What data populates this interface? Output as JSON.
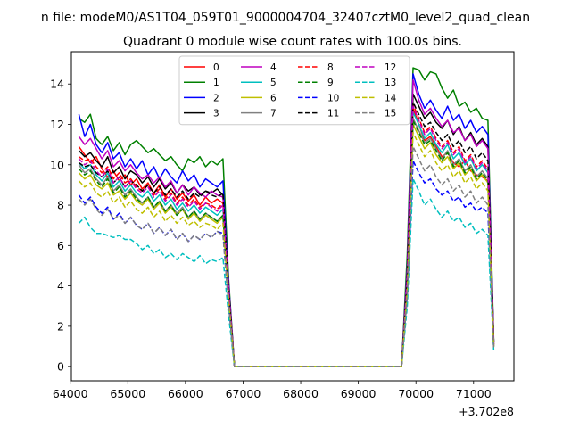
{
  "chart_data": {
    "type": "line",
    "suptitle": "n file: modeM0/AS1T04_059T01_9000004704_32407cztM0_level2_quad_clean",
    "title": "Quadrant 0 module wise count rates with 100.0s bins.",
    "xlabel": "",
    "ylabel": "",
    "x_offset_label": "+3.702e8",
    "xlim": [
      64020,
      71700
    ],
    "ylim": [
      -0.7,
      15.6
    ],
    "x_ticks": [
      64000,
      65000,
      66000,
      67000,
      68000,
      69000,
      70000,
      71000
    ],
    "x_tick_labels": [
      "64000",
      "65000",
      "66000",
      "67000",
      "68000",
      "69000",
      "70000",
      "71000"
    ],
    "y_ticks": [
      0,
      2,
      4,
      6,
      8,
      10,
      12,
      14
    ],
    "y_tick_labels": [
      "0",
      "2",
      "4",
      "6",
      "8",
      "10",
      "12",
      "14"
    ],
    "grid": false,
    "legend_position": "top-center",
    "legend_columns": 4,
    "x": [
      64150,
      64250,
      64350,
      64450,
      64550,
      64650,
      64750,
      64850,
      64950,
      65050,
      65150,
      65250,
      65350,
      65450,
      65550,
      65650,
      65750,
      65850,
      65950,
      66050,
      66150,
      66250,
      66350,
      66450,
      66550,
      66650,
      66750,
      66850,
      66950,
      69750,
      69850,
      69950,
      70050,
      70150,
      70250,
      70350,
      70450,
      70550,
      70650,
      70750,
      70850,
      70950,
      71050,
      71150,
      71250,
      71350
    ],
    "series": [
      {
        "name": "0",
        "color": "#ff0000",
        "dash": false,
        "values": [
          10.9,
          10.5,
          10.1,
          10.4,
          9.8,
          9.4,
          9.7,
          9.2,
          9.5,
          9.0,
          9.3,
          8.8,
          9.1,
          8.6,
          9.0,
          8.4,
          8.8,
          8.3,
          8.6,
          8.2,
          8.5,
          8.0,
          8.4,
          8.1,
          8.3,
          8.1,
          3.8,
          0.0,
          0.0,
          0.0,
          4.3,
          12.8,
          12.0,
          11.2,
          11.4,
          10.9,
          10.4,
          10.6,
          10.1,
          9.9,
          10.2,
          9.7,
          9.5,
          9.4,
          9.2,
          1.1
        ]
      },
      {
        "name": "1",
        "color": "#008000",
        "dash": false,
        "values": [
          12.3,
          12.1,
          12.5,
          11.3,
          11.0,
          11.4,
          10.7,
          11.1,
          10.5,
          11.0,
          11.2,
          10.9,
          10.6,
          10.8,
          10.5,
          10.2,
          10.4,
          10.0,
          9.7,
          10.3,
          10.1,
          10.4,
          9.9,
          10.2,
          10.0,
          10.3,
          4.3,
          0.0,
          0.0,
          0.0,
          5.6,
          14.8,
          14.7,
          14.2,
          14.6,
          14.5,
          13.8,
          13.3,
          13.7,
          12.9,
          13.1,
          12.6,
          12.8,
          12.3,
          12.2,
          1.3
        ]
      },
      {
        "name": "2",
        "color": "#0000ff",
        "dash": false,
        "values": [
          12.5,
          11.4,
          12.0,
          11.0,
          10.6,
          11.1,
          10.3,
          10.6,
          9.9,
          10.3,
          9.8,
          10.2,
          9.5,
          9.9,
          9.3,
          9.8,
          9.4,
          9.1,
          9.7,
          9.2,
          9.5,
          8.9,
          9.3,
          9.1,
          8.9,
          9.2,
          4.1,
          0.0,
          0.0,
          0.0,
          5.0,
          14.5,
          13.5,
          12.8,
          13.2,
          12.7,
          12.3,
          12.9,
          12.2,
          12.5,
          11.8,
          12.2,
          11.6,
          11.9,
          11.5,
          1.2
        ]
      },
      {
        "name": "3",
        "color": "#000000",
        "dash": false,
        "values": [
          10.7,
          10.4,
          10.6,
          10.2,
          9.9,
          10.4,
          9.6,
          9.9,
          9.3,
          9.7,
          9.5,
          9.1,
          9.4,
          8.9,
          9.3,
          8.8,
          9.1,
          8.6,
          9.0,
          8.7,
          8.9,
          8.5,
          8.7,
          8.6,
          8.8,
          8.5,
          3.9,
          0.0,
          0.0,
          0.0,
          4.7,
          13.5,
          12.9,
          12.3,
          12.6,
          12.1,
          11.8,
          12.2,
          11.5,
          11.9,
          11.2,
          11.6,
          11.0,
          11.3,
          10.9,
          1.2
        ]
      },
      {
        "name": "4",
        "color": "#bf00bf",
        "dash": false,
        "values": [
          11.4,
          11.0,
          11.3,
          10.8,
          10.3,
          10.7,
          9.9,
          10.2,
          9.7,
          10.0,
          9.6,
          9.3,
          9.5,
          9.1,
          9.4,
          8.9,
          9.2,
          8.6,
          9.0,
          8.5,
          8.9,
          8.6,
          8.4,
          8.7,
          8.5,
          8.4,
          4.0,
          0.0,
          0.0,
          0.0,
          4.8,
          14.2,
          13.2,
          12.5,
          12.8,
          12.3,
          11.9,
          12.2,
          11.6,
          11.8,
          11.2,
          11.5,
          10.9,
          11.2,
          10.8,
          1.2
        ]
      },
      {
        "name": "5",
        "color": "#00bfbf",
        "dash": false,
        "values": [
          10.1,
          9.8,
          10.0,
          9.5,
          9.2,
          9.6,
          8.9,
          9.2,
          8.7,
          9.0,
          8.6,
          8.4,
          8.7,
          8.2,
          8.5,
          8.0,
          8.3,
          7.8,
          8.1,
          7.7,
          8.0,
          7.6,
          7.9,
          7.7,
          7.5,
          7.8,
          3.6,
          0.0,
          0.0,
          0.0,
          4.2,
          12.6,
          12.0,
          11.3,
          11.6,
          11.0,
          10.6,
          11.0,
          10.3,
          10.6,
          10.0,
          10.3,
          9.7,
          10.0,
          9.6,
          1.1
        ]
      },
      {
        "name": "6",
        "color": "#bfbf00",
        "dash": false,
        "values": [
          9.6,
          9.3,
          9.5,
          9.0,
          8.8,
          9.1,
          8.5,
          8.7,
          8.3,
          8.6,
          8.2,
          8.0,
          8.3,
          7.8,
          8.1,
          7.6,
          7.9,
          7.5,
          7.8,
          7.3,
          7.6,
          7.2,
          7.5,
          7.3,
          7.1,
          7.4,
          3.4,
          0.0,
          0.0,
          0.0,
          4.0,
          12.0,
          11.4,
          10.8,
          11.1,
          10.5,
          10.1,
          10.4,
          9.8,
          10.1,
          9.5,
          9.8,
          9.2,
          9.5,
          9.1,
          1.0
        ]
      },
      {
        "name": "7",
        "color": "#808080",
        "dash": false,
        "values": [
          10.0,
          9.6,
          9.8,
          9.3,
          9.0,
          9.4,
          8.7,
          9.0,
          8.5,
          8.8,
          8.4,
          8.1,
          8.4,
          7.9,
          8.2,
          7.7,
          8.0,
          7.6,
          7.9,
          7.4,
          7.7,
          7.3,
          7.6,
          7.4,
          7.2,
          7.5,
          3.5,
          0.0,
          0.0,
          0.0,
          4.1,
          12.3,
          11.7,
          11.1,
          11.3,
          10.8,
          10.3,
          10.7,
          10.0,
          10.3,
          9.7,
          10.0,
          9.4,
          9.7,
          9.3,
          1.0
        ]
      },
      {
        "name": "8",
        "color": "#ff0000",
        "dash": true,
        "values": [
          10.4,
          10.2,
          10.3,
          9.9,
          9.6,
          9.9,
          9.3,
          9.6,
          9.1,
          9.3,
          8.9,
          8.7,
          9.0,
          8.5,
          8.8,
          8.3,
          8.6,
          8.1,
          8.4,
          8.0,
          8.3,
          7.9,
          8.1,
          8.0,
          7.8,
          8.1,
          3.7,
          0.0,
          0.0,
          0.0,
          4.4,
          13.0,
          12.3,
          11.6,
          11.9,
          11.3,
          10.9,
          11.2,
          10.6,
          10.9,
          10.2,
          10.5,
          9.9,
          10.2,
          9.8,
          1.1
        ]
      },
      {
        "name": "9",
        "color": "#008000",
        "dash": true,
        "values": [
          9.8,
          9.5,
          9.7,
          9.2,
          8.9,
          9.3,
          8.6,
          8.9,
          8.4,
          8.7,
          8.3,
          8.1,
          8.4,
          7.9,
          8.2,
          7.7,
          8.0,
          7.5,
          7.8,
          7.4,
          7.7,
          7.3,
          7.6,
          7.4,
          7.2,
          7.5,
          3.5,
          0.0,
          0.0,
          0.0,
          4.1,
          12.2,
          11.6,
          11.0,
          11.2,
          10.7,
          10.2,
          10.6,
          9.9,
          10.2,
          9.6,
          9.9,
          9.3,
          9.6,
          9.2,
          1.0
        ]
      },
      {
        "name": "10",
        "color": "#0000ff",
        "dash": true,
        "values": [
          8.5,
          8.1,
          8.4,
          7.9,
          7.6,
          7.9,
          7.3,
          7.6,
          7.1,
          7.4,
          7.0,
          6.8,
          7.1,
          6.6,
          6.9,
          6.5,
          6.8,
          6.3,
          6.6,
          6.2,
          6.5,
          6.3,
          6.6,
          6.4,
          6.7,
          6.6,
          3.0,
          0.0,
          0.0,
          0.0,
          3.5,
          10.2,
          9.6,
          9.1,
          9.3,
          8.8,
          8.5,
          8.7,
          8.2,
          8.4,
          7.9,
          8.1,
          7.7,
          7.9,
          7.6,
          0.9
        ]
      },
      {
        "name": "11",
        "color": "#000000",
        "dash": true,
        "values": [
          10.1,
          9.9,
          10.0,
          9.6,
          9.4,
          9.7,
          9.1,
          9.4,
          8.9,
          9.2,
          9.0,
          8.7,
          9.0,
          8.6,
          8.9,
          8.5,
          8.8,
          8.4,
          8.7,
          8.3,
          8.6,
          8.4,
          8.7,
          8.5,
          8.4,
          8.6,
          3.9,
          0.0,
          0.0,
          0.0,
          4.5,
          13.1,
          12.5,
          11.9,
          12.1,
          11.6,
          11.2,
          11.5,
          10.9,
          11.2,
          10.6,
          10.9,
          10.3,
          10.6,
          10.2,
          1.2
        ]
      },
      {
        "name": "12",
        "color": "#bf00bf",
        "dash": true,
        "values": [
          10.3,
          10.0,
          10.2,
          9.7,
          9.4,
          9.8,
          9.1,
          9.4,
          8.9,
          9.2,
          8.8,
          8.6,
          8.9,
          8.4,
          8.7,
          8.2,
          8.5,
          8.0,
          8.3,
          7.9,
          8.2,
          7.8,
          8.1,
          7.9,
          7.7,
          8.0,
          3.7,
          0.0,
          0.0,
          0.0,
          4.3,
          12.9,
          12.2,
          11.5,
          11.8,
          11.2,
          10.8,
          11.1,
          10.5,
          10.8,
          10.1,
          10.4,
          9.8,
          10.1,
          9.7,
          1.1
        ]
      },
      {
        "name": "13",
        "color": "#00bfbf",
        "dash": true,
        "values": [
          7.1,
          7.4,
          6.9,
          6.6,
          6.6,
          6.5,
          6.4,
          6.5,
          6.3,
          6.3,
          6.1,
          5.8,
          6.0,
          5.6,
          5.8,
          5.4,
          5.6,
          5.3,
          5.6,
          5.4,
          5.2,
          5.5,
          5.1,
          5.3,
          5.2,
          5.4,
          2.5,
          0.0,
          0.0,
          0.0,
          3.0,
          9.3,
          8.7,
          8.0,
          8.3,
          7.8,
          7.4,
          7.7,
          7.2,
          7.4,
          6.9,
          7.1,
          6.6,
          6.8,
          6.5,
          0.8
        ]
      },
      {
        "name": "14",
        "color": "#bfbf00",
        "dash": true,
        "values": [
          9.2,
          8.9,
          9.1,
          8.6,
          8.4,
          8.7,
          8.1,
          8.4,
          7.9,
          8.2,
          7.8,
          7.6,
          7.9,
          7.4,
          7.7,
          7.2,
          7.5,
          7.1,
          7.4,
          7.0,
          7.2,
          6.9,
          7.1,
          7.0,
          6.8,
          7.1,
          3.3,
          0.0,
          0.0,
          0.0,
          3.8,
          11.6,
          11.0,
          10.4,
          10.7,
          10.1,
          9.7,
          10.0,
          9.4,
          9.7,
          9.1,
          9.4,
          8.8,
          9.1,
          8.7,
          1.0
        ]
      },
      {
        "name": "15",
        "color": "#808080",
        "dash": true,
        "values": [
          8.3,
          8.0,
          8.3,
          7.8,
          7.5,
          7.8,
          7.3,
          7.5,
          7.1,
          7.4,
          7.0,
          6.8,
          7.1,
          6.6,
          6.9,
          6.5,
          6.8,
          6.3,
          6.6,
          6.2,
          6.5,
          6.3,
          6.6,
          6.4,
          6.7,
          6.5,
          3.0,
          0.0,
          0.0,
          0.0,
          3.5,
          10.9,
          10.3,
          9.7,
          10.0,
          9.4,
          9.0,
          9.3,
          8.7,
          9.0,
          8.4,
          8.7,
          8.1,
          8.4,
          8.0,
          0.9
        ]
      }
    ]
  }
}
